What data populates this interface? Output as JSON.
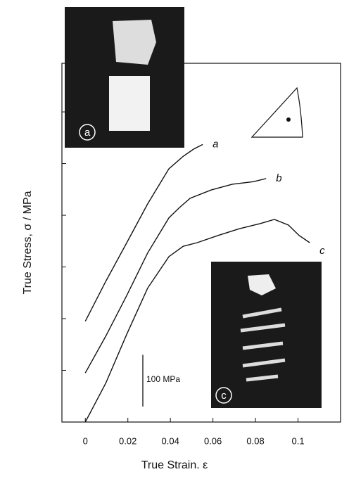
{
  "chart_data": {
    "type": "line",
    "x_label": "True Strain. ε",
    "y_label": "True Stress, σ / MPa",
    "xlim": [
      -0.011,
      0.12
    ],
    "xticks": [
      0,
      0.02,
      0.04,
      0.06,
      0.08,
      0.1
    ],
    "ylim": [
      0,
      694
    ],
    "yticks": [
      0,
      100,
      200,
      300,
      400,
      500,
      600
    ],
    "color": "#111111",
    "series": [
      {
        "name": "a",
        "x": [
          0,
          0.0096,
          0.0195,
          0.0293,
          0.0393,
          0.046,
          0.0509,
          0.0552
        ],
        "values": [
          195,
          272,
          347,
          422,
          490,
          514,
          528,
          537
        ]
      },
      {
        "name": "b",
        "x": [
          0,
          0.0096,
          0.0195,
          0.0293,
          0.0393,
          0.0443,
          0.0493,
          0.0592,
          0.0691,
          0.079,
          0.085
        ],
        "values": [
          95,
          166,
          245,
          327,
          395,
          415,
          433,
          449,
          460,
          465,
          471
        ]
      },
      {
        "name": "c",
        "x": [
          0,
          0.0096,
          0.0195,
          0.0293,
          0.0393,
          0.046,
          0.0526,
          0.0625,
          0.0724,
          0.0823,
          0.0889,
          0.0955,
          0.1005,
          0.1055
        ],
        "values": [
          0,
          75,
          170,
          259,
          320,
          340,
          347,
          361,
          374,
          384,
          392,
          381,
          361,
          347
        ]
      }
    ],
    "scale_bar": {
      "label": "100 MPa",
      "value": 100
    },
    "inset_labels": [
      "a",
      "c"
    ]
  }
}
